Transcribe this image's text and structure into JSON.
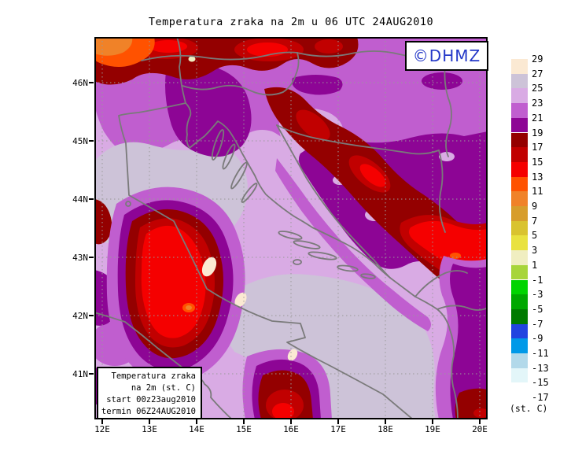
{
  "title": "Temperatura zraka na 2m u 06 UTC 24AUG2010",
  "branding": {
    "label": "©DHMZ",
    "color": "#2438c8"
  },
  "info_box": {
    "lines": [
      "Temperatura zraka",
      "na 2m (st. C)",
      "start 00z23aug2010",
      "termin 06Z24AUG2010"
    ]
  },
  "axes": {
    "lon_ticks": [
      "12E",
      "13E",
      "14E",
      "15E",
      "16E",
      "17E",
      "18E",
      "19E",
      "20E"
    ],
    "lat_ticks": [
      "46N",
      "45N",
      "44N",
      "43N",
      "42N",
      "41N"
    ]
  },
  "legend": {
    "unit_label": "(st. C)",
    "boundary_labels": [
      "29",
      "27",
      "25",
      "23",
      "21",
      "19",
      "17",
      "15",
      "13",
      "11",
      "9",
      "7",
      "5",
      "3",
      "1",
      "-1",
      "-3",
      "-5",
      "-7",
      "-9",
      "-11",
      "-13",
      "-15",
      "-17"
    ],
    "cells": [
      {
        "range": "27 to 29",
        "color": "#fbe9d3"
      },
      {
        "range": "25 to 27",
        "color": "#cdc3d8"
      },
      {
        "range": "23 to 25",
        "color": "#d9abe4"
      },
      {
        "range": "21 to 23",
        "color": "#c05ecf"
      },
      {
        "range": "19 to 21",
        "color": "#8d0595"
      },
      {
        "range": "17 to 19",
        "color": "#940000"
      },
      {
        "range": "15 to 17",
        "color": "#c10000"
      },
      {
        "range": "13 to 15",
        "color": "#f50000"
      },
      {
        "range": "11 to 13",
        "color": "#ff5200"
      },
      {
        "range": "9 to 11",
        "color": "#f08228"
      },
      {
        "range": "7 to 9",
        "color": "#d79d2b"
      },
      {
        "range": "5 to 7",
        "color": "#d9c32f"
      },
      {
        "range": "3 to 5",
        "color": "#e9e23f"
      },
      {
        "range": "1 to 3",
        "color": "#f0eec1"
      },
      {
        "range": "-1 to 1",
        "color": "#a7d53a"
      },
      {
        "range": "-3 to -1",
        "color": "#00d400"
      },
      {
        "range": "-5 to -3",
        "color": "#00a800"
      },
      {
        "range": "-7 to -5",
        "color": "#007b00"
      },
      {
        "range": "-9 to -7",
        "color": "#2244e0"
      },
      {
        "range": "-11 to -9",
        "color": "#0099e8"
      },
      {
        "range": "-13 to -11",
        "color": "#b2d9ea"
      },
      {
        "range": "-15 to -13",
        "color": "#e3f6f9"
      },
      {
        "range": "-17 to -15",
        "color": "#ffffff"
      }
    ]
  },
  "map": {
    "coast_color": "#7a7a7a",
    "grid_color": "#9a9a9a",
    "frame_color": "#000000"
  }
}
